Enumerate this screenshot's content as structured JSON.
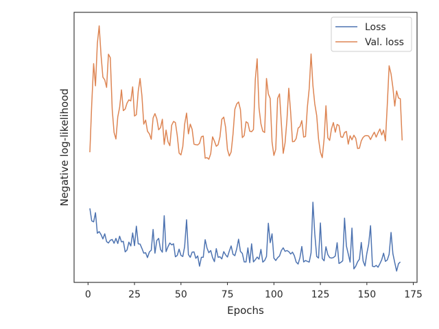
{
  "chart_data": {
    "type": "line",
    "title": "",
    "xlabel": "Epochs",
    "ylabel": "Negative log-likelihood",
    "xlim": [
      -7.5,
      177
    ],
    "ylim": [
      0.0,
      1.0
    ],
    "x_ticks": [
      "0",
      "25",
      "50",
      "75",
      "100",
      "125",
      "150",
      "175"
    ],
    "x_tick_values": [
      0,
      25,
      50,
      75,
      100,
      125,
      150,
      175
    ],
    "y_tick_labels_shown": false,
    "grid": false,
    "legend_position": "top-right",
    "colors": {
      "loss": "#4c72b0",
      "val_loss": "#dd8452",
      "axis": "#262626"
    },
    "series": [
      {
        "name": "Loss",
        "color_key": "loss",
        "x_start": 1,
        "x_step": 1,
        "values": [
          0.274,
          0.228,
          0.224,
          0.258,
          0.182,
          0.188,
          0.177,
          0.161,
          0.18,
          0.151,
          0.146,
          0.156,
          0.159,
          0.145,
          0.163,
          0.144,
          0.171,
          0.15,
          0.152,
          0.113,
          0.12,
          0.149,
          0.135,
          0.183,
          0.136,
          0.208,
          0.143,
          0.142,
          0.126,
          0.108,
          0.11,
          0.092,
          0.113,
          0.119,
          0.196,
          0.108,
          0.155,
          0.163,
          0.122,
          0.112,
          0.247,
          0.114,
          0.132,
          0.146,
          0.139,
          0.143,
          0.095,
          0.1,
          0.123,
          0.1,
          0.096,
          0.133,
          0.232,
          0.103,
          0.093,
          0.112,
          0.113,
          0.089,
          0.098,
          0.06,
          0.093,
          0.093,
          0.158,
          0.127,
          0.11,
          0.118,
          0.092,
          0.077,
          0.125,
          0.093,
          0.095,
          0.087,
          0.114,
          0.102,
          0.094,
          0.116,
          0.135,
          0.104,
          0.099,
          0.124,
          0.16,
          0.115,
          0.107,
          0.076,
          0.076,
          0.128,
          0.073,
          0.143,
          0.076,
          0.084,
          0.094,
          0.086,
          0.122,
          0.075,
          0.081,
          0.096,
          0.219,
          0.147,
          0.18,
          0.09,
          0.081,
          0.091,
          0.098,
          0.118,
          0.128,
          0.115,
          0.118,
          0.114,
          0.105,
          0.112,
          0.099,
          0.075,
          0.068,
          0.092,
          0.133,
          0.076,
          0.081,
          0.078,
          0.075,
          0.11,
          0.297,
          0.18,
          0.096,
          0.09,
          0.22,
          0.088,
          0.08,
          0.132,
          0.103,
          0.092,
          0.09,
          0.092,
          0.098,
          0.147,
          0.07,
          0.074,
          0.08,
          0.238,
          0.135,
          0.105,
          0.075,
          0.201,
          0.05,
          0.06,
          0.076,
          0.086,
          0.148,
          0.079,
          0.061,
          0.107,
          0.142,
          0.21,
          0.06,
          0.058,
          0.063,
          0.056,
          0.069,
          0.084,
          0.108,
          0.078,
          0.083,
          0.104,
          0.185,
          0.106,
          0.073,
          0.042,
          0.069,
          0.076
        ],
        "x_values_comment": ""
      },
      {
        "name": "Val. loss",
        "color_key": "val_loss",
        "x_start": 1,
        "x_step": 1,
        "values": [
          0.482,
          0.658,
          0.81,
          0.728,
          0.884,
          0.95,
          0.842,
          0.76,
          0.75,
          0.722,
          0.845,
          0.832,
          0.64,
          0.555,
          0.531,
          0.613,
          0.648,
          0.713,
          0.636,
          0.642,
          0.664,
          0.676,
          0.672,
          0.724,
          0.616,
          0.621,
          0.707,
          0.755,
          0.691,
          0.586,
          0.601,
          0.56,
          0.55,
          0.53,
          0.609,
          0.625,
          0.606,
          0.565,
          0.573,
          0.604,
          0.511,
          0.564,
          0.521,
          0.506,
          0.582,
          0.596,
          0.592,
          0.544,
          0.479,
          0.472,
          0.503,
          0.586,
          0.627,
          0.55,
          0.586,
          0.567,
          0.512,
          0.51,
          0.509,
          0.515,
          0.539,
          0.542,
          0.46,
          0.462,
          0.456,
          0.477,
          0.539,
          0.523,
          0.504,
          0.51,
          0.539,
          0.604,
          0.612,
          0.574,
          0.492,
          0.468,
          0.483,
          0.549,
          0.641,
          0.661,
          0.668,
          0.64,
          0.536,
          0.544,
          0.595,
          0.59,
          0.56,
          0.558,
          0.566,
          0.751,
          0.828,
          0.646,
          0.587,
          0.56,
          0.555,
          0.755,
          0.698,
          0.681,
          0.52,
          0.47,
          0.493,
          0.681,
          0.698,
          0.588,
          0.478,
          0.517,
          0.601,
          0.719,
          0.631,
          0.521,
          0.522,
          0.533,
          0.571,
          0.577,
          0.599,
          0.538,
          0.54,
          0.649,
          0.718,
          0.846,
          0.729,
          0.661,
          0.618,
          0.531,
          0.482,
          0.462,
          0.531,
          0.654,
          0.535,
          0.526,
          0.569,
          0.592,
          0.556,
          0.585,
          0.581,
          0.539,
          0.537,
          0.555,
          0.559,
          0.512,
          0.543,
          0.528,
          0.545,
          0.534,
          0.496,
          0.497,
          0.524,
          0.537,
          0.543,
          0.544,
          0.542,
          0.529,
          0.544,
          0.556,
          0.538,
          0.554,
          0.568,
          0.546,
          0.564,
          0.524,
          0.657,
          0.802,
          0.772,
          0.721,
          0.653,
          0.709,
          0.683,
          0.68,
          0.526
        ]
      }
    ]
  }
}
